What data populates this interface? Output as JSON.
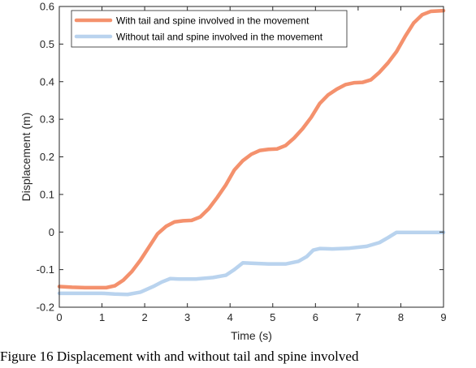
{
  "caption": "Figure 16 Displacement with and without tail and spine involved",
  "chart_data": {
    "type": "line",
    "xlabel": "Time (s)",
    "ylabel": "Displacement (m)",
    "xlim": [
      0,
      9
    ],
    "ylim": [
      -0.2,
      0.6
    ],
    "xticks": [
      0,
      1,
      2,
      3,
      4,
      5,
      6,
      7,
      8,
      9
    ],
    "yticks": [
      -0.2,
      -0.1,
      0,
      0.1,
      0.2,
      0.3,
      0.4,
      0.5,
      0.6
    ],
    "grid": false,
    "legend_position": "top-left",
    "series": [
      {
        "name": "With tail and spine involved in the movement",
        "color": "#f4916d",
        "x": [
          0,
          0.3,
          0.6,
          0.9,
          1.1,
          1.3,
          1.5,
          1.7,
          1.9,
          2.1,
          2.3,
          2.5,
          2.7,
          2.9,
          3.1,
          3.3,
          3.5,
          3.7,
          3.9,
          4.1,
          4.3,
          4.5,
          4.7,
          4.9,
          5.1,
          5.3,
          5.5,
          5.7,
          5.9,
          6.1,
          6.3,
          6.5,
          6.7,
          6.9,
          7.1,
          7.3,
          7.5,
          7.7,
          7.9,
          8.1,
          8.3,
          8.5,
          8.7,
          9.0
        ],
        "y": [
          -0.145,
          -0.147,
          -0.148,
          -0.148,
          -0.148,
          -0.143,
          -0.128,
          -0.105,
          -0.075,
          -0.04,
          -0.005,
          0.015,
          0.027,
          0.03,
          0.031,
          0.04,
          0.062,
          0.092,
          0.125,
          0.165,
          0.19,
          0.207,
          0.217,
          0.22,
          0.221,
          0.23,
          0.25,
          0.275,
          0.305,
          0.342,
          0.365,
          0.38,
          0.392,
          0.397,
          0.398,
          0.405,
          0.425,
          0.45,
          0.48,
          0.52,
          0.556,
          0.578,
          0.587,
          0.589
        ]
      },
      {
        "name": "Without tail and spine involved in the movement",
        "color": "#b9d3ee",
        "x": [
          0,
          0.5,
          1.0,
          1.3,
          1.6,
          1.9,
          2.2,
          2.4,
          2.6,
          2.8,
          3.2,
          3.6,
          3.9,
          4.1,
          4.3,
          4.5,
          4.9,
          5.3,
          5.6,
          5.8,
          5.95,
          6.1,
          6.4,
          6.8,
          7.2,
          7.5,
          7.7,
          7.9,
          8.2,
          8.6,
          9.0
        ],
        "y": [
          -0.163,
          -0.163,
          -0.163,
          -0.165,
          -0.166,
          -0.16,
          -0.145,
          -0.133,
          -0.124,
          -0.125,
          -0.125,
          -0.121,
          -0.115,
          -0.1,
          -0.082,
          -0.083,
          -0.085,
          -0.085,
          -0.078,
          -0.065,
          -0.048,
          -0.044,
          -0.045,
          -0.043,
          -0.038,
          -0.028,
          -0.015,
          -0.001,
          -0.001,
          -0.001,
          -0.001
        ]
      }
    ]
  }
}
